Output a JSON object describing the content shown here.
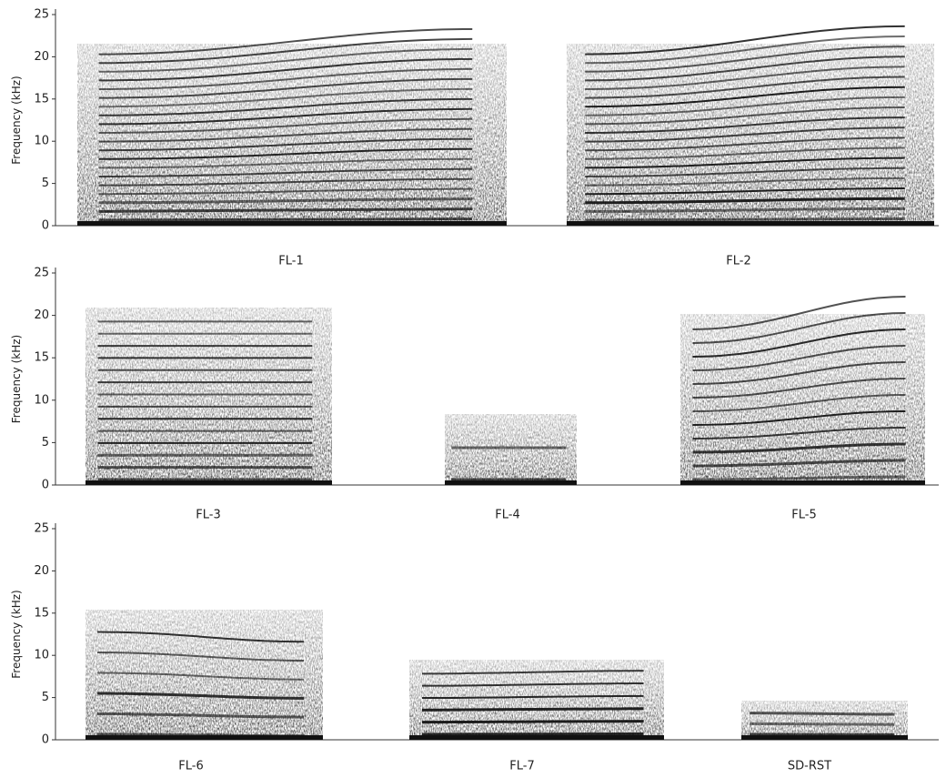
{
  "rows": [
    {
      "y_axis_label": "Frequency (kHz)",
      "yticks": [
        0,
        5,
        10,
        15,
        20,
        25
      ],
      "panels": [
        "FL-1",
        "FL-2"
      ]
    },
    {
      "y_axis_label": "Frequency (kHz)",
      "yticks": [
        0,
        5,
        10,
        15,
        20,
        25
      ],
      "panels": [
        "FL-3",
        "FL-4",
        "FL-5"
      ]
    },
    {
      "y_axis_label": "Frequency (kHz)",
      "yticks": [
        0,
        5,
        10,
        15,
        20,
        25
      ],
      "panels": [
        "FL-6",
        "FL-7",
        "SD-RST"
      ]
    }
  ]
}
